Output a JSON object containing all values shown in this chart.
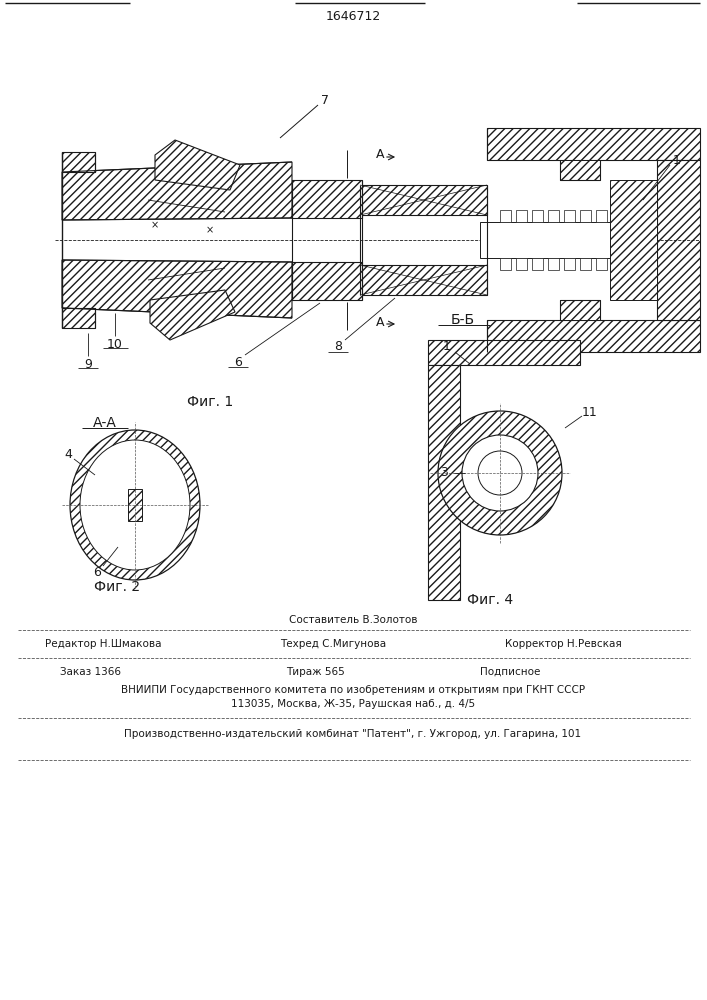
{
  "patent_number": "1646712",
  "fig1_caption": "Фиг. 1",
  "fig2_caption": "Фиг. 2",
  "fig4_caption": "Фиг. 4",
  "section_aa": "А-А",
  "section_bb": "Б-Б",
  "label_7": "7",
  "label_A1": "A",
  "label_A2": "A",
  "label_1": "1",
  "label_9": "9",
  "label_10": "10",
  "label_6a": "6",
  "label_8": "8",
  "label_4": "4",
  "label_6b": "6",
  "label_1b": "1",
  "label_3": "3",
  "label_11": "11",
  "footer_line1": "Составитель В.Золотов",
  "footer_editor": "Редактор Н.Шмакова",
  "footer_tech": "Техред С.Мигунова",
  "footer_corr": "Корректор Н.Ревская",
  "footer_order": "Заказ 1366",
  "footer_circ": "Тираж 565",
  "footer_sign": "Подписное",
  "footer_vniipi": "ВНИИПИ Государственного комитета по изобретениям и открытиям при ГКНТ СССР",
  "footer_addr": "113035, Москва, Ж-35, Раушская наб., д. 4/5",
  "footer_patent": "Производственно-издательский комбинат \"Патент\", г. Ужгород, ул. Гагарина, 101",
  "lc": "#1a1a1a",
  "lw": 0.8
}
